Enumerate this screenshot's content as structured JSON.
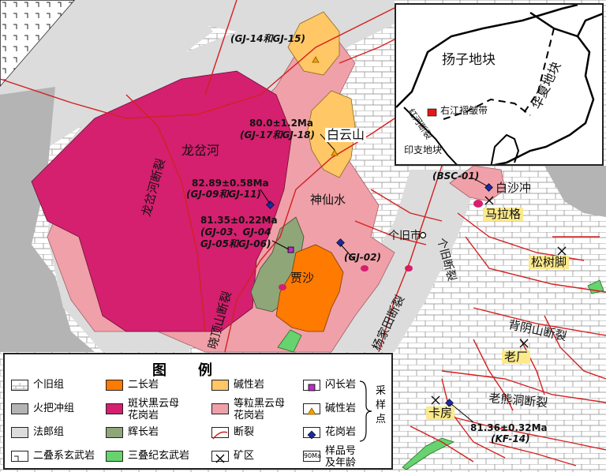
{
  "map": {
    "places": {
      "longchahe": "龙岔河",
      "baiyunshan": "白云山",
      "shenxianshui": "神仙水",
      "jiasha": "贾沙",
      "gejiu_city": "个旧市",
      "baishachong": "白沙冲",
      "malage": "马拉格",
      "songshujiao": "松树脚",
      "laochang": "老厂",
      "kafang": "卡房"
    },
    "faults": {
      "longchahe_fault": "龙岔河断裂",
      "xiaodingshan_fault": "晓顶山断裂",
      "yangjiatian_fault": "杨家田断裂",
      "gejiu_fault": "个旧断裂",
      "beiyinshan_fault": "背阴山断裂",
      "laoxiongdong_fault": "老熊洞断裂"
    },
    "samples": {
      "gj14_15": "(GJ-14和GJ-15)",
      "age_gj17": "80.0±1.2Ma",
      "gj17_18": "(GJ-17和GJ-18)",
      "age_gj09": "82.89±0.58Ma",
      "gj09_11": "(GJ-09和GJ-11)",
      "age_gj03": "81.35±0.22Ma",
      "gj03_04": "(GJ-03、GJ-04",
      "gj05_06": "GJ-05和GJ-06)",
      "gj02": "(GJ-02)",
      "bsc01": "(BSC-01)",
      "age_kf14": "81.36±0.32Ma",
      "kf14": "(KF-14)"
    }
  },
  "inset": {
    "yangtze": "扬子地块",
    "huaxia": "华夏地块",
    "youjiang": "右江褶皱带",
    "honghe": "红河断裂",
    "indochina": "印支地块"
  },
  "legend": {
    "title": "图例",
    "items": {
      "gejiu": "个旧组",
      "huoba": "火把冲组",
      "falang": "法郎组",
      "permian_basalt": "二叠系玄武岩",
      "erchang": "二长岩",
      "porphyritic_1": "斑状黑云母",
      "porphyritic_2": "花岗岩",
      "gabbro": "辉长岩",
      "triassic_basalt": "三叠纪玄武岩",
      "alkaline": "碱性岩",
      "equigranular_1": "等粒黑云母",
      "equigranular_2": "花岗岩",
      "fault": "断裂",
      "mine": "矿区",
      "diorite_sym": "闪长岩",
      "alkaline_sym": "碱性岩",
      "granite_sym": "花岗岩",
      "sample_1": "采",
      "sample_2": "样",
      "sample_3": "点",
      "age_sym": "90Ma",
      "age_label_1": "样品号",
      "age_label_2": "及年龄"
    }
  },
  "colors": {
    "gejiu": "#ffffff",
    "huoba": "#b4b4b4",
    "falang": "#dcdcdc",
    "erchang": "#ff7a00",
    "porphyritic": "#d4206f",
    "gabbro": "#8fa678",
    "alkaline": "#ffc766",
    "equigranular": "#f0a0a8",
    "triassic_basalt": "#66d36e",
    "fault": "#d42020",
    "highlight": "#fbe98c"
  }
}
